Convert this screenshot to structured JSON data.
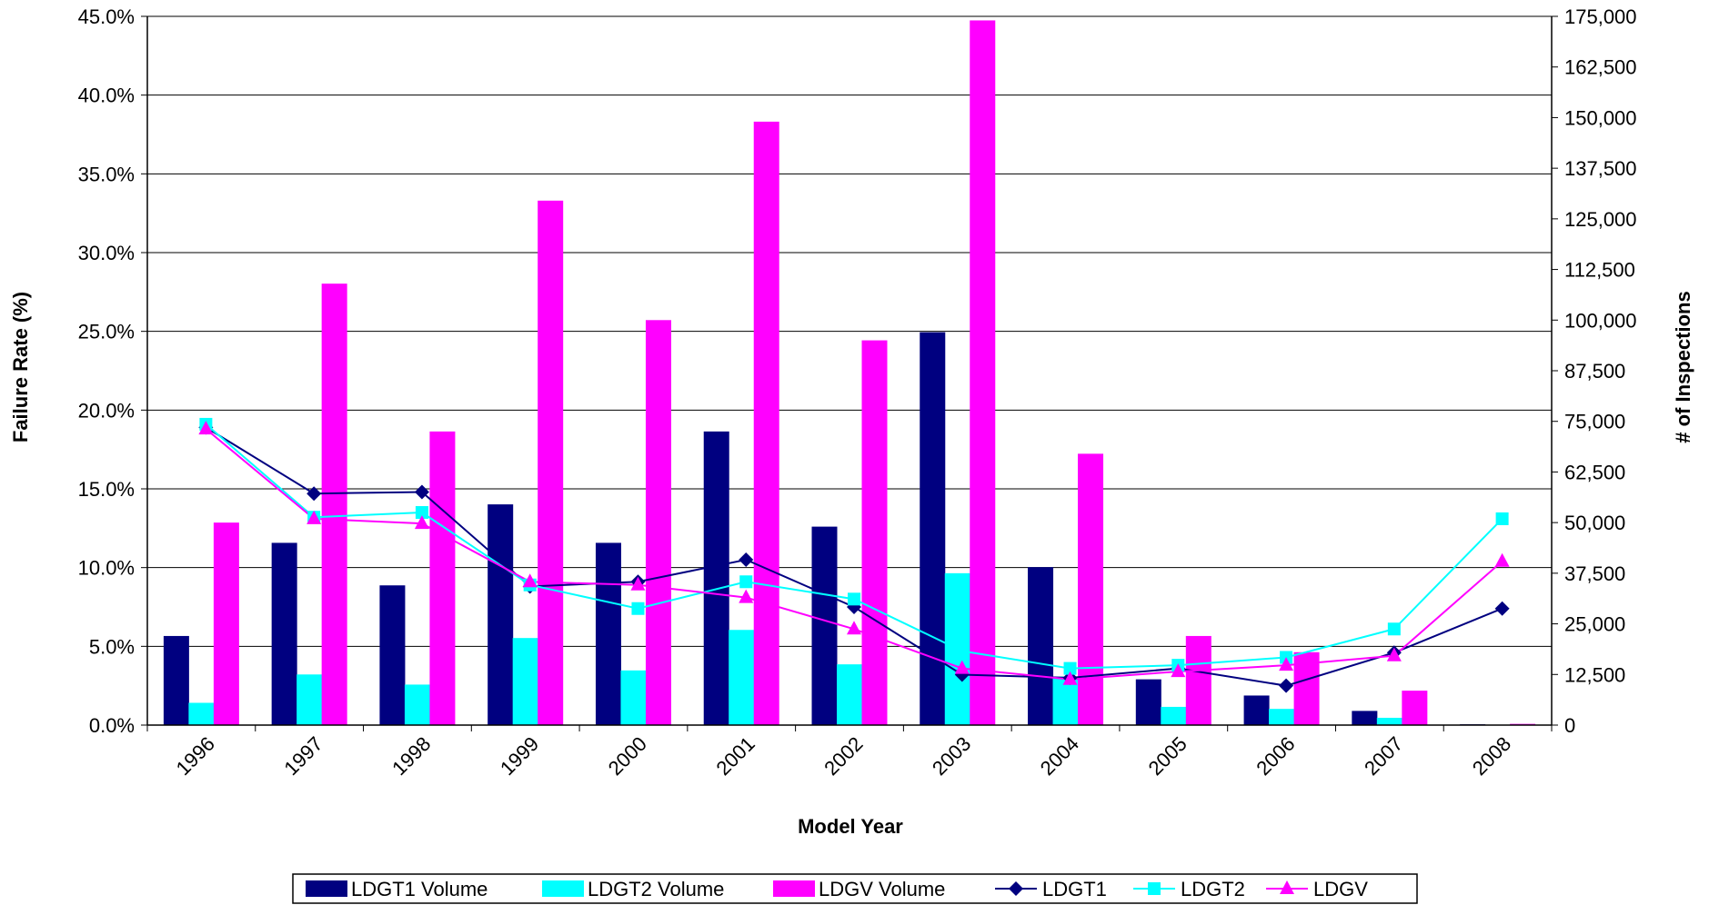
{
  "chart_data": {
    "type": "bar",
    "xlabel": "Model Year",
    "ylabel_left": "Failure Rate (%)",
    "ylabel_right": "# of Inspections",
    "categories": [
      "1996",
      "1997",
      "1998",
      "1999",
      "2000",
      "2001",
      "2002",
      "2003",
      "2004",
      "2005",
      "2006",
      "2007",
      "2008"
    ],
    "y_left": {
      "min": 0,
      "max": 45,
      "ticks": [
        "0.0%",
        "5.0%",
        "10.0%",
        "15.0%",
        "20.0%",
        "25.0%",
        "30.0%",
        "35.0%",
        "40.0%",
        "45.0%"
      ]
    },
    "y_right": {
      "min": 0,
      "max": 175000,
      "ticks": [
        "0",
        "12,500",
        "25,000",
        "37,500",
        "50,000",
        "62,500",
        "75,000",
        "87,500",
        "100,000",
        "112,500",
        "125,000",
        "137,500",
        "150,000",
        "162,500",
        "175,000"
      ]
    },
    "grid": "horizontal",
    "legend_position": "bottom",
    "bar_series": [
      {
        "name": "LDGT1 Volume",
        "color": "#000080",
        "values": [
          22000,
          45000,
          34500,
          54500,
          45000,
          72500,
          49000,
          97000,
          39000,
          11300,
          7300,
          3500,
          200
        ]
      },
      {
        "name": "LDGT2 Volume",
        "color": "#00FFFF",
        "values": [
          5500,
          12500,
          10000,
          21500,
          13500,
          23500,
          15000,
          37500,
          12000,
          4500,
          4000,
          1800,
          100
        ]
      },
      {
        "name": "LDGV Volume",
        "color": "#FF00FF",
        "values": [
          50000,
          109000,
          72500,
          129500,
          100000,
          149000,
          95000,
          174000,
          67000,
          22000,
          18000,
          8500,
          300
        ]
      }
    ],
    "line_series": [
      {
        "name": "LDGT1",
        "color": "#000080",
        "marker": "diamond",
        "values": [
          18.9,
          14.7,
          14.8,
          8.8,
          9.1,
          10.5,
          7.5,
          3.2,
          3.0,
          3.6,
          2.5,
          4.6,
          7.4
        ]
      },
      {
        "name": "LDGT2",
        "color": "#00FFFF",
        "marker": "square",
        "values": [
          19.1,
          13.2,
          13.5,
          8.9,
          7.4,
          9.1,
          8.0,
          4.7,
          3.6,
          3.8,
          4.3,
          6.1,
          13.1
        ]
      },
      {
        "name": "LDGV",
        "color": "#FF00FF",
        "marker": "triangle",
        "values": [
          18.8,
          13.1,
          12.8,
          9.1,
          8.9,
          8.1,
          6.1,
          3.6,
          2.9,
          3.4,
          3.8,
          4.4,
          10.4
        ]
      }
    ]
  }
}
